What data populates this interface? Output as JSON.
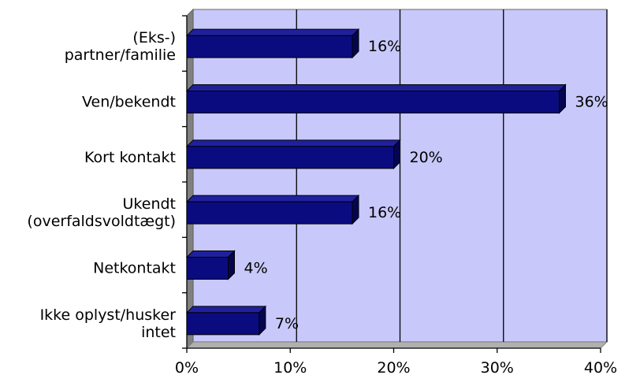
{
  "chart_data": {
    "type": "bar",
    "orientation": "horizontal",
    "style": "3d",
    "categories": [
      [
        "(Eks-)",
        "partner/familie"
      ],
      [
        "Ven/bekendt"
      ],
      [
        "Kort kontakt"
      ],
      [
        "Ukendt",
        "(overfaldsvoldtægt)"
      ],
      [
        "Netkontakt"
      ],
      [
        "Ikke oplyst/husker",
        "intet"
      ]
    ],
    "values": [
      16,
      36,
      20,
      16,
      4,
      7
    ],
    "data_labels": [
      "16%",
      "36%",
      "20%",
      "16%",
      "4%",
      "7%"
    ],
    "xlim": [
      0,
      40
    ],
    "xticks": [
      0,
      10,
      20,
      30,
      40
    ],
    "xtick_labels": [
      "0%",
      "10%",
      "20%",
      "30%",
      "40%"
    ],
    "xlabel": "",
    "ylabel": "",
    "title": "",
    "grid": "vertical",
    "colors": {
      "bar_front": "#0b0b80",
      "bar_top": "#20209f",
      "bar_side": "#05054f",
      "plot_back": "#c8c8fa",
      "floor_side": "#808080",
      "grid": "#000000"
    }
  }
}
